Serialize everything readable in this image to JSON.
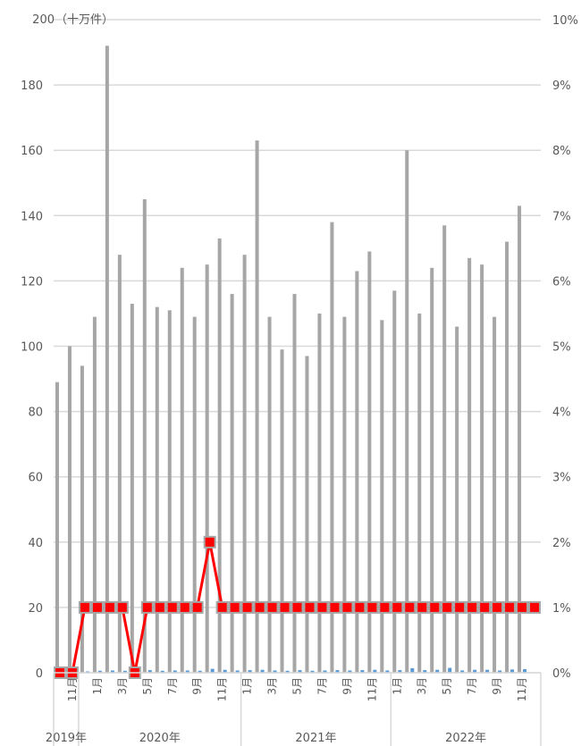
{
  "chart_data": {
    "type": "bar",
    "left_axis": {
      "unit_label": "（十万件）",
      "min": 0,
      "max": 200,
      "step": 20
    },
    "right_axis": {
      "min": 0,
      "max": 10,
      "step": 1,
      "suffix": "%"
    },
    "grid": true,
    "colors": {
      "bar": "#a6a6a6",
      "small_bar": "#5b9bd5",
      "line": "#ff0000",
      "marker_fill": "#ff0000",
      "marker_edge": "#a6a6a6",
      "grid": "#d9d9d9",
      "text": "#595959"
    },
    "months": [
      10,
      11,
      12,
      1,
      2,
      3,
      4,
      5,
      6,
      7,
      8,
      9,
      10,
      11,
      12,
      1,
      2,
      3,
      4,
      5,
      6,
      7,
      8,
      9,
      10,
      11,
      12,
      1,
      2,
      3,
      4,
      5,
      6,
      7,
      8,
      9,
      10,
      11,
      12
    ],
    "month_labels": [
      "",
      "11月",
      "",
      "1月",
      "",
      "3月",
      "",
      "5月",
      "",
      "7月",
      "",
      "9月",
      "",
      "11月",
      "",
      "1月",
      "",
      "3月",
      "",
      "5月",
      "",
      "7月",
      "",
      "9月",
      "",
      "11月",
      "",
      "1月",
      "",
      "3月",
      "",
      "5月",
      "",
      "7月",
      "",
      "9月",
      "",
      "11月",
      ""
    ],
    "years": [
      {
        "label": "2019年",
        "start": 0,
        "count": 2
      },
      {
        "label": "2020年",
        "start": 2,
        "count": 13
      },
      {
        "label": "2021年",
        "start": 15,
        "count": 12
      },
      {
        "label": "2022年",
        "start": 27,
        "count": 12
      }
    ],
    "series": [
      {
        "type": "bar",
        "axis": "left",
        "values": [
          89,
          100,
          94,
          109,
          192,
          128,
          113,
          145,
          112,
          111,
          124,
          109,
          125,
          133,
          116,
          128,
          163,
          109,
          99,
          116,
          97,
          110,
          138,
          109,
          123,
          129,
          108,
          117,
          160,
          110,
          124,
          137,
          106,
          127,
          125,
          109,
          132,
          143,
          0
        ]
      },
      {
        "type": "bar",
        "axis": "left",
        "values": [
          0.3,
          0.4,
          0.4,
          0.6,
          0.7,
          0.6,
          0.3,
          0.8,
          0.6,
          0.7,
          0.7,
          0.6,
          1.2,
          0.9,
          0.7,
          0.8,
          0.9,
          0.7,
          0.6,
          0.8,
          0.6,
          0.7,
          0.8,
          0.7,
          0.8,
          0.9,
          0.7,
          0.8,
          1.4,
          0.8,
          0.9,
          1.5,
          0.7,
          0.9,
          0.9,
          0.7,
          1,
          1.1,
          0
        ]
      },
      {
        "type": "line",
        "axis": "right",
        "values": [
          0,
          0,
          1,
          1,
          1,
          1,
          0,
          1,
          1,
          1,
          1,
          1,
          2,
          1,
          1,
          1,
          1,
          1,
          1,
          1,
          1,
          1,
          1,
          1,
          1,
          1,
          1,
          1,
          1,
          1,
          1,
          1,
          1,
          1,
          1,
          1,
          1,
          1,
          1
        ]
      }
    ]
  }
}
